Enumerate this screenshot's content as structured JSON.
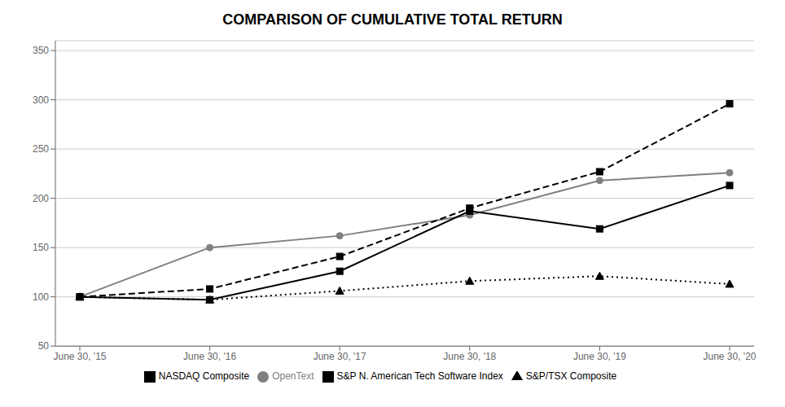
{
  "chart_data": {
    "type": "line",
    "title": "COMPARISON OF CUMULATIVE TOTAL RETURN",
    "categories": [
      "June 30, '15",
      "June 30, '16",
      "June 30, '17",
      "June 30, '18",
      "June 30, '19",
      "June 30, '20"
    ],
    "series": [
      {
        "name": "OpenText",
        "color": "#808080",
        "marker": "circle",
        "line_style": "solid",
        "values": [
          100,
          150,
          162,
          183,
          218,
          226
        ]
      },
      {
        "name": "NASDAQ Composite",
        "color": "#000000",
        "marker": "square",
        "line_style": "solid",
        "values": [
          100,
          97,
          126,
          187,
          169,
          213
        ]
      },
      {
        "name": "S&P/TSX Composite",
        "color": "#000000",
        "marker": "triangle",
        "line_style": "dotted",
        "values": [
          100,
          97,
          106,
          116,
          121,
          113
        ]
      },
      {
        "name": "S&P N. American Tech Software Index",
        "color": "#000000",
        "marker": "square",
        "line_style": "dashed",
        "values": [
          100,
          108,
          141,
          190,
          227,
          296
        ]
      }
    ],
    "ylim": [
      50,
      360
    ],
    "yticks": [
      50,
      100,
      150,
      200,
      250,
      300,
      350
    ],
    "grid": true,
    "legend": "bottom"
  }
}
